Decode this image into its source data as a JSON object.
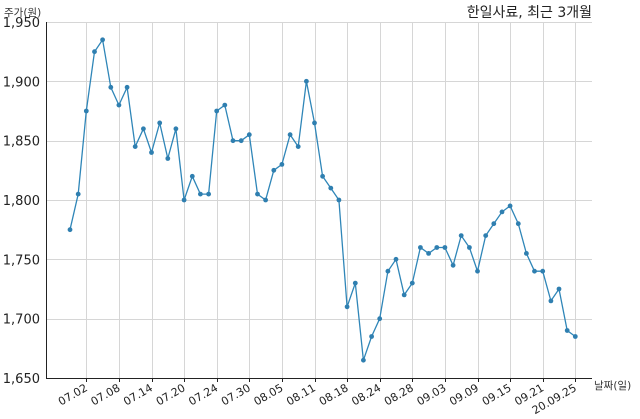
{
  "chart_data": {
    "type": "line",
    "title": "한일사료, 최근 3개월",
    "ylabel": "주가(원)",
    "xlabel": "날짜(일)",
    "ylim": [
      1650,
      1950
    ],
    "yticks": [
      1650,
      1700,
      1750,
      1800,
      1850,
      1900,
      1950
    ],
    "ytick_labels": [
      "1,650",
      "1,700",
      "1,750",
      "1,800",
      "1,850",
      "1,900",
      "1,950"
    ],
    "xticks": [
      {
        "index": 2,
        "label": "07.02"
      },
      {
        "index": 6,
        "label": "07.08"
      },
      {
        "index": 10,
        "label": "07.14"
      },
      {
        "index": 14,
        "label": "07.20"
      },
      {
        "index": 18,
        "label": "07.24"
      },
      {
        "index": 22,
        "label": "07.30"
      },
      {
        "index": 26,
        "label": "08.05"
      },
      {
        "index": 30,
        "label": "08.11"
      },
      {
        "index": 34,
        "label": "08.18"
      },
      {
        "index": 38,
        "label": "08.24"
      },
      {
        "index": 42,
        "label": "08.28"
      },
      {
        "index": 46,
        "label": "09.03"
      },
      {
        "index": 50,
        "label": "09.09"
      },
      {
        "index": 54,
        "label": "09.15"
      },
      {
        "index": 58,
        "label": "09.21"
      },
      {
        "index": 62,
        "label": "20.09.25"
      }
    ],
    "grid": true,
    "series": [
      {
        "values": [
          1775,
          1805,
          1875,
          1925,
          1935,
          1895,
          1880,
          1895,
          1845,
          1860,
          1840,
          1865,
          1835,
          1860,
          1800,
          1820,
          1805,
          1805,
          1875,
          1880,
          1850,
          1850,
          1855,
          1805,
          1800,
          1825,
          1830,
          1855,
          1845,
          1900,
          1865,
          1820,
          1810,
          1800,
          1710,
          1730,
          1665,
          1685,
          1700,
          1740,
          1750,
          1720,
          1730,
          1760,
          1755,
          1760,
          1760,
          1745,
          1770,
          1760,
          1740,
          1770,
          1780,
          1790,
          1795,
          1780,
          1755,
          1740,
          1740,
          1715,
          1725,
          1690,
          1685
        ],
        "color": "#2f86b8"
      }
    ]
  }
}
